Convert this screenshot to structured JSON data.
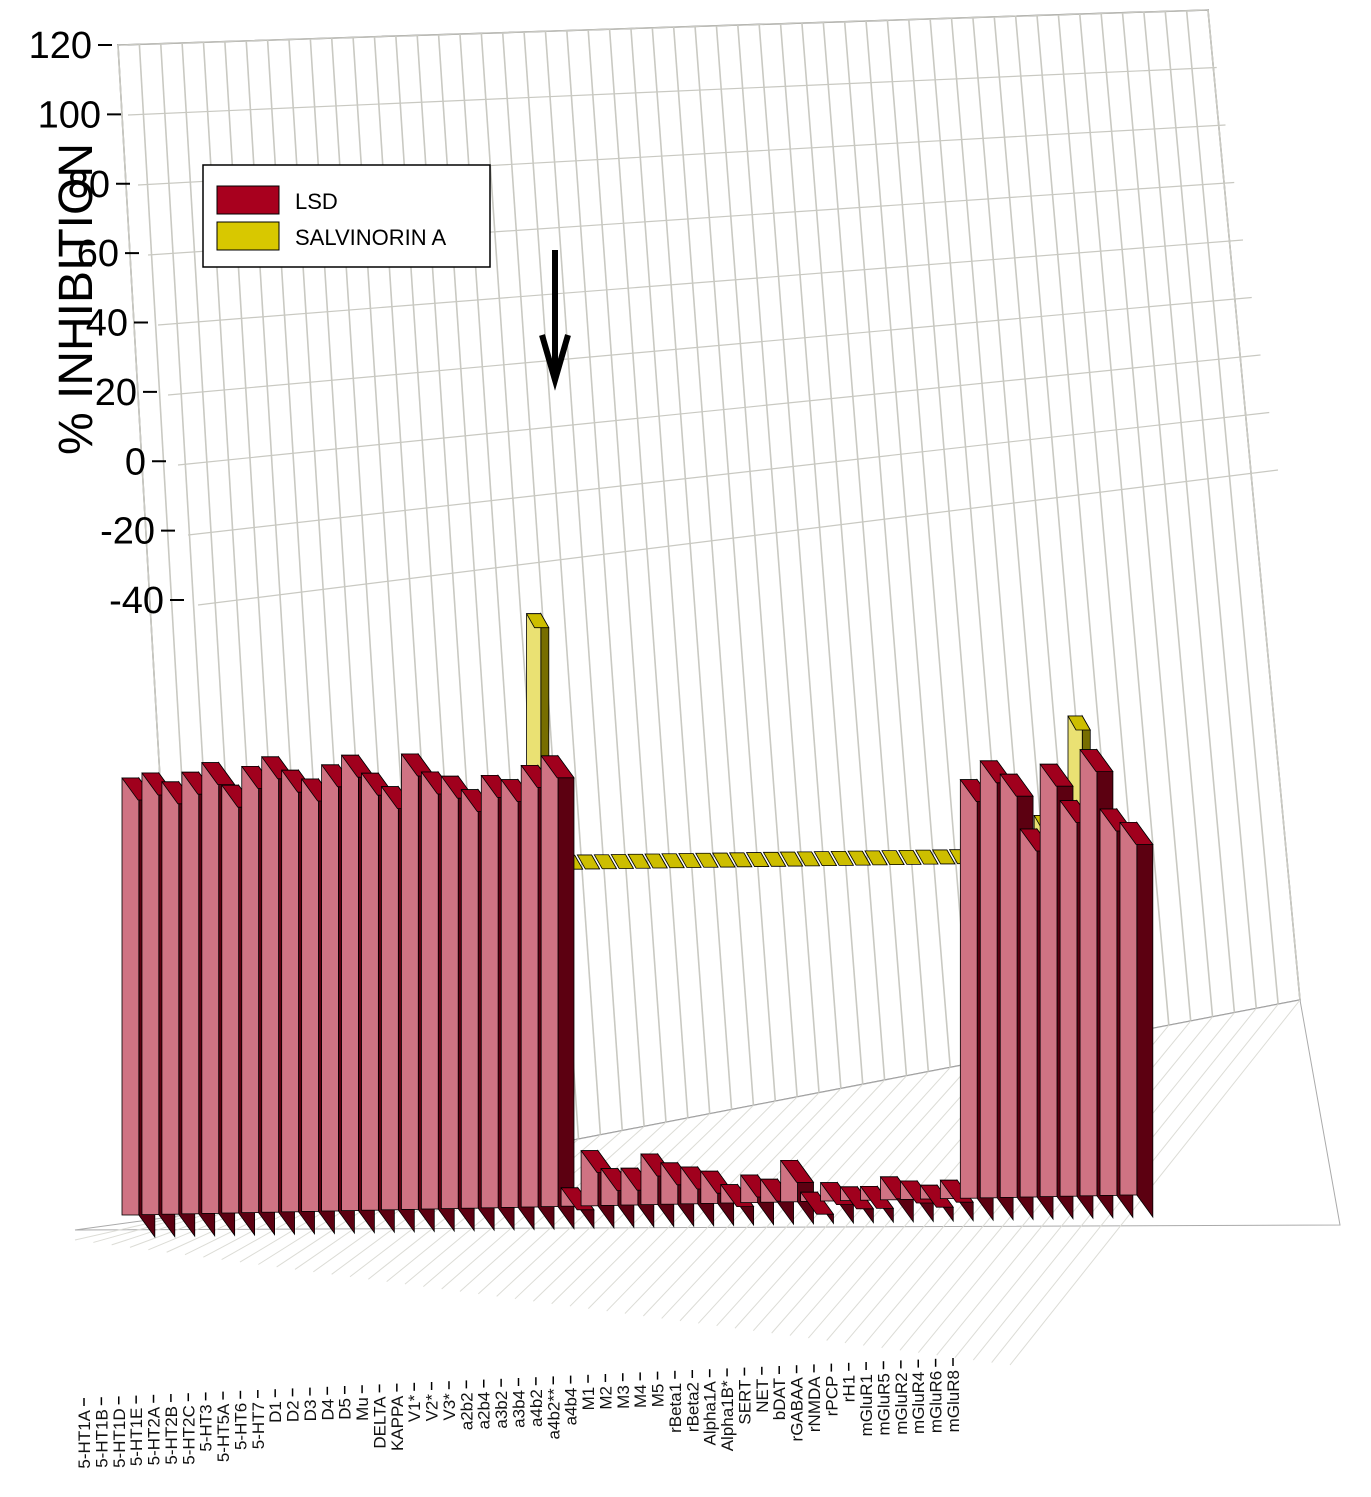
{
  "chart_data": {
    "type": "bar",
    "ylabel": "% INHIBITION",
    "ylim": [
      -40,
      120
    ],
    "yticks": [
      120,
      100,
      80,
      60,
      40,
      20,
      0,
      -20,
      -40
    ],
    "grid": true,
    "legend_position": "top-left",
    "annotations": [
      "down-arrow-over-KAPPA-salvinorin-bar"
    ],
    "categories": [
      "5-HT1A",
      "5-HT1B",
      "5-HT1D",
      "5-HT1E",
      "5-HT2A",
      "5-HT2B",
      "5-HT2C",
      "5-HT3",
      "5-HT5A",
      "5-HT6",
      "5-HT7",
      "D1",
      "D2",
      "D3",
      "D4",
      "D5",
      "Mu",
      "DELTA",
      "KAPPA",
      "V1*",
      "V2*",
      "V3*",
      "a2b2",
      "a2b4",
      "a3b2",
      "a3b4",
      "a4b2",
      "a4b2**",
      "a4b4",
      "M1",
      "M2",
      "M3",
      "M4",
      "M5",
      "rBeta1",
      "rBeta2",
      "Alpha1A",
      "Alpha1B*",
      "SERT",
      "NET",
      "bDAT",
      "rGABAA",
      "rNMDA",
      "rPCP",
      "rH1",
      "mGluR1",
      "mGluR5",
      "mGluR2",
      "mGluR4",
      "mGluR6",
      "mGluR8"
    ],
    "series": [
      {
        "name": "LSD",
        "color": "#a8001e",
        "values": [
          95,
          96,
          94,
          96,
          98,
          93,
          97,
          99,
          96,
          94,
          97,
          99,
          95,
          92,
          99,
          95,
          94,
          91,
          94,
          93,
          96,
          98,
          4,
          12,
          8,
          8,
          11,
          9,
          8,
          7,
          4,
          6,
          5,
          9,
          2,
          4,
          3,
          3,
          5,
          4,
          3,
          4,
          91,
          95,
          92,
          80,
          94,
          86,
          97,
          84,
          81
        ]
      },
      {
        "name": "SALVINORIN A",
        "color": "#d8c800",
        "values": [
          0,
          0,
          0,
          0,
          0,
          0,
          0,
          0,
          0,
          0,
          0,
          0,
          0,
          0,
          0,
          0,
          0,
          0,
          22,
          0,
          0,
          0,
          0,
          0,
          0,
          0,
          0,
          0,
          0,
          0,
          0,
          0,
          0,
          0,
          0,
          0,
          0,
          0,
          0,
          0,
          0,
          0,
          0,
          0,
          -4,
          -8,
          -4,
          1,
          3,
          5,
          12
        ]
      }
    ]
  }
}
